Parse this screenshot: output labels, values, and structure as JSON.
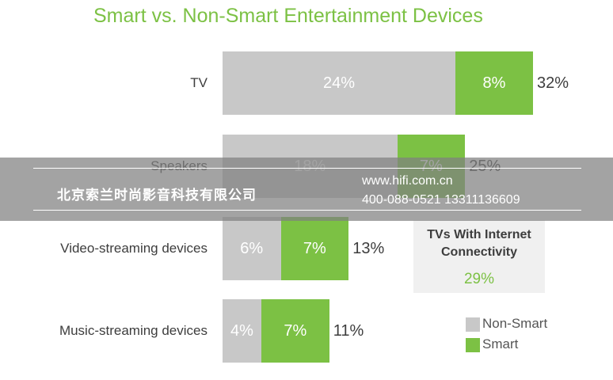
{
  "chart_data": {
    "type": "bar",
    "orientation": "horizontal",
    "stacked": true,
    "title": "Smart vs. Non-Smart Entertainment Devices",
    "categories": [
      "TV",
      "Speakers",
      "Video-streaming devices",
      "Music-streaming devices"
    ],
    "series": [
      {
        "name": "Non-Smart",
        "color": "#c8c8c8",
        "values": [
          24,
          18,
          6,
          4
        ],
        "labels": [
          "24%",
          "18%",
          "6%",
          "4%"
        ]
      },
      {
        "name": "Smart",
        "color": "#7cc144",
        "values": [
          8,
          7,
          7,
          7
        ],
        "labels": [
          "8%",
          "7%",
          "7%",
          "7%"
        ]
      }
    ],
    "totals": [
      "32%",
      "25%",
      "13%",
      "11%"
    ],
    "unit": "%",
    "legend_position": "bottom-right",
    "grid": false
  },
  "callout": {
    "title_line1": "TVs With Internet",
    "title_line2": "Connectivity",
    "value": "29%"
  },
  "watermark": {
    "company": "北京索兰时尚影音科技有限公司",
    "url": "www.hifi.com.cn",
    "phones": "400-088-0521 13311136609"
  }
}
